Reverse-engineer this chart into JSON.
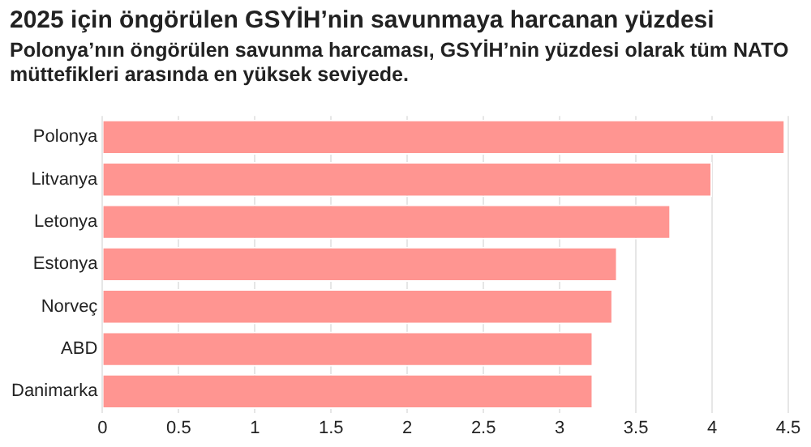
{
  "chart_data": {
    "type": "bar",
    "orientation": "horizontal",
    "title": "2025 için öngörülen GSYİH’nin savunmaya harcanan yüzdesi",
    "subtitle": "Polonya’nın öngörülen savunma harcaması, GSYİH’nin yüzdesi olarak tüm NATO müttefikleri arasında en yüksek seviyede.",
    "categories": [
      "Polonya",
      "Litvanya",
      "Letonya",
      "Estonya",
      "Norveç",
      "ABD",
      "Danimarka"
    ],
    "values": [
      4.48,
      4.0,
      3.73,
      3.38,
      3.35,
      3.22,
      3.22
    ],
    "color": "#ff9591",
    "xlim": [
      0,
      4.5
    ],
    "xticks": [
      0,
      0.5,
      1,
      1.5,
      2,
      2.5,
      3,
      3.5,
      4,
      4.5
    ],
    "grid": "x",
    "legend": false
  }
}
